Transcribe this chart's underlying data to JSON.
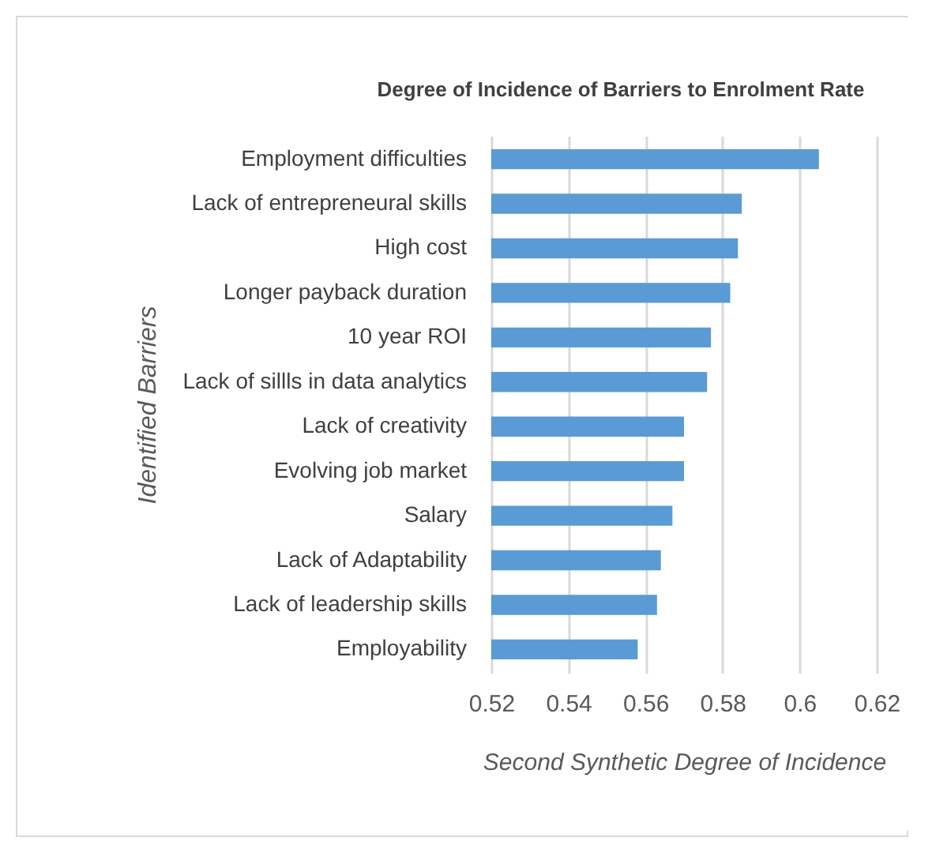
{
  "chart_data": {
    "type": "bar",
    "orientation": "horizontal",
    "title": "Degree of Incidence of Barriers to Enrolment Rate",
    "xlabel": "Second Synthetic Degree of Incidence",
    "ylabel": "Identified Barriers",
    "categories": [
      "Employment difficulties",
      "Lack of entrepreneural skills",
      "High cost",
      "Longer payback duration",
      "10 year ROI",
      "Lack of sillls in data analytics",
      "Lack of creativity",
      "Evolving job market ",
      "Salary",
      "Lack of Adaptability ",
      "Lack of leadership skills",
      "Employability"
    ],
    "values": [
      0.605,
      0.585,
      0.584,
      0.582,
      0.577,
      0.576,
      0.57,
      0.57,
      0.567,
      0.564,
      0.563,
      0.558
    ],
    "color": "#5b9bd5",
    "xlim": [
      0.52,
      0.62
    ],
    "xticks": [
      0.52,
      0.54,
      0.56,
      0.58,
      0.6,
      0.62
    ],
    "grid": "x"
  }
}
